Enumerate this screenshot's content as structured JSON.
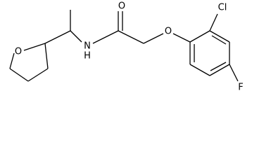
{
  "atoms": [
    {
      "label": "O"
    },
    {
      "label": "N"
    },
    {
      "label": "H"
    },
    {
      "label": "O"
    },
    {
      "label": "O"
    },
    {
      "label": "Cl"
    },
    {
      "label": "F"
    }
  ]
}
